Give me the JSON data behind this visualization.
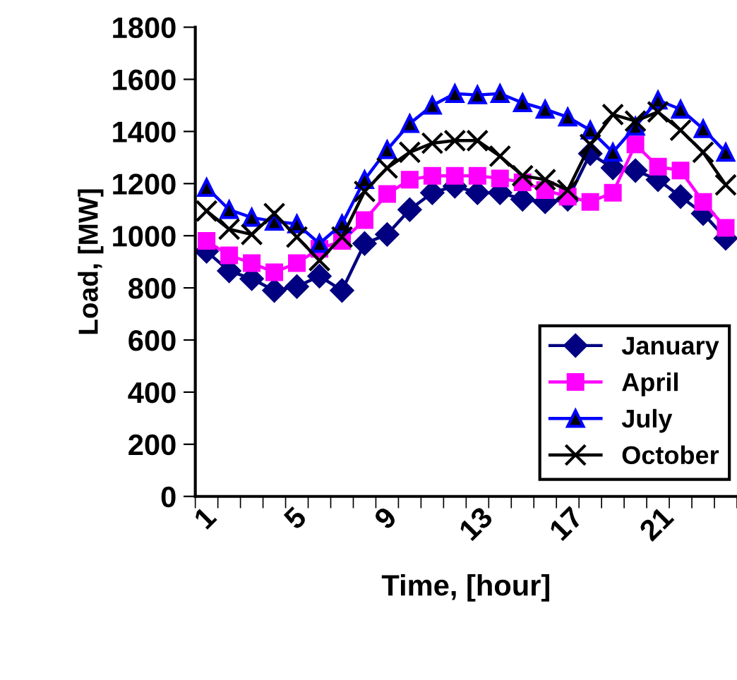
{
  "chart_data": {
    "type": "line",
    "xlabel": "Time, [hour]",
    "ylabel": "Load, [MW]",
    "categories": [
      "1",
      null,
      null,
      null,
      "5",
      null,
      null,
      null,
      "9",
      null,
      null,
      null,
      "13",
      null,
      null,
      null,
      "17",
      null,
      null,
      null,
      "21",
      null,
      null,
      null
    ],
    "ylim": [
      0,
      1800
    ],
    "yticks": [
      0,
      200,
      400,
      600,
      800,
      1000,
      1200,
      1400,
      1600,
      1800
    ],
    "grid": false,
    "legend": "bottom right",
    "line_style": "solid",
    "series": [
      {
        "name": "January",
        "color": "#000080",
        "marker": "diamond",
        "values": [
          940,
          865,
          835,
          790,
          805,
          845,
          790,
          970,
          1005,
          1100,
          1165,
          1190,
          1165,
          1165,
          1140,
          1130,
          1140,
          1315,
          1260,
          1250,
          1215,
          1150,
          1085,
          990
        ]
      },
      {
        "name": "April",
        "color": "#ff00ff",
        "marker": "square",
        "values": [
          980,
          925,
          895,
          860,
          895,
          950,
          980,
          1060,
          1160,
          1215,
          1230,
          1230,
          1230,
          1220,
          1205,
          1175,
          1150,
          1130,
          1165,
          1350,
          1265,
          1250,
          1130,
          1030
        ]
      },
      {
        "name": "July",
        "color": "#0000ff",
        "marker": "triangle",
        "values": [
          1185,
          1100,
          1070,
          1055,
          1045,
          970,
          1045,
          1215,
          1330,
          1430,
          1500,
          1545,
          1540,
          1545,
          1510,
          1485,
          1455,
          1405,
          1320,
          1420,
          1520,
          1485,
          1410,
          1320
        ]
      },
      {
        "name": "October",
        "color": "#000000",
        "marker": "cross",
        "values": [
          1095,
          1025,
          1005,
          1085,
          995,
          905,
          995,
          1170,
          1260,
          1320,
          1355,
          1365,
          1365,
          1305,
          1230,
          1215,
          1175,
          1350,
          1465,
          1440,
          1475,
          1405,
          1320,
          1195
        ]
      }
    ]
  }
}
